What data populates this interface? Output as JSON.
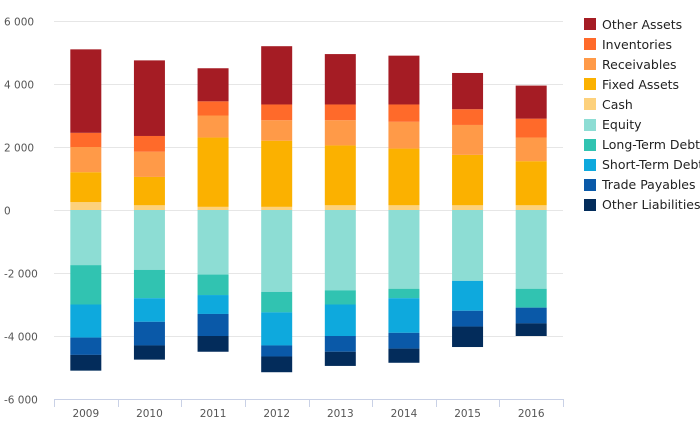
{
  "chart_data": {
    "type": "bar",
    "stacked": true,
    "categories": [
      "2009",
      "2010",
      "2011",
      "2012",
      "2013",
      "2014",
      "2015",
      "2016"
    ],
    "ylim": [
      -6000,
      6000
    ],
    "yticks": [
      6000,
      4000,
      2000,
      0,
      -2000,
      -4000,
      -6000
    ],
    "ytick_labels": [
      "6 000",
      "4 000",
      "2 000",
      "0",
      "-2 000",
      "-4 000",
      "-6 000"
    ],
    "grid": true,
    "legend_position": "right",
    "series": [
      {
        "name": "Other Assets",
        "color": "#a51c24",
        "values": [
          2650,
          2400,
          1050,
          1850,
          1600,
          1550,
          1150,
          1050
        ]
      },
      {
        "name": "Inventories",
        "color": "#ff6a2a",
        "values": [
          450,
          500,
          450,
          500,
          500,
          550,
          500,
          600
        ]
      },
      {
        "name": "Receivables",
        "color": "#ff9a48",
        "values": [
          800,
          800,
          700,
          650,
          800,
          850,
          950,
          750
        ]
      },
      {
        "name": "Fixed Assets",
        "color": "#fbb100",
        "values": [
          950,
          900,
          2200,
          2100,
          1900,
          1800,
          1600,
          1400
        ]
      },
      {
        "name": "Cash",
        "color": "#fdd17c",
        "values": [
          250,
          150,
          100,
          100,
          150,
          150,
          150,
          150
        ]
      },
      {
        "name": "Equity",
        "color": "#8dddd4",
        "values": [
          -1750,
          -1900,
          -2050,
          -2600,
          -2550,
          -2500,
          -2250,
          -2500
        ]
      },
      {
        "name": "Long-Term Debt",
        "color": "#31c3b1",
        "values": [
          -1250,
          -900,
          -650,
          -650,
          -450,
          -300,
          0,
          -600
        ]
      },
      {
        "name": "Short-Term Debt",
        "color": "#0ea9dd",
        "values": [
          -1050,
          -750,
          -600,
          -1050,
          -1000,
          -1100,
          -950,
          0
        ]
      },
      {
        "name": "Trade Payables",
        "color": "#0a59a8",
        "values": [
          -550,
          -750,
          -700,
          -350,
          -500,
          -500,
          -500,
          -500
        ]
      },
      {
        "name": "Other Liabilities",
        "color": "#032c5b",
        "values": [
          -500,
          -450,
          -500,
          -500,
          -450,
          -450,
          -650,
          -400
        ]
      }
    ]
  }
}
